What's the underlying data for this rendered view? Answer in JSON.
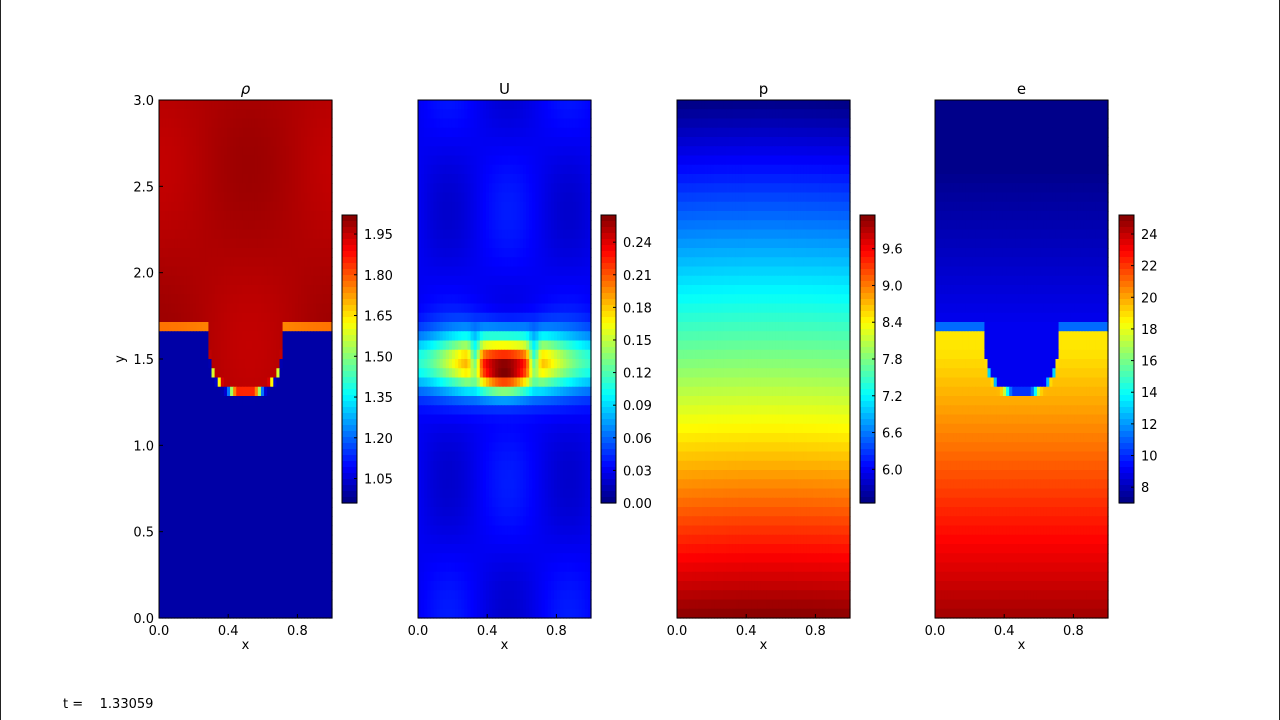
{
  "colors": {
    "jet": [
      "#00007f",
      "#0000ff",
      "#007fff",
      "#00ffff",
      "#7fff7f",
      "#ffff00",
      "#ff7f00",
      "#ff0000",
      "#7f0000"
    ],
    "frame_border": "#000000",
    "page_background": "#ffffff"
  },
  "time": {
    "label": "t =",
    "value": "1.33059"
  },
  "chart_data": [
    {
      "type": "heatmap",
      "title": "ρ",
      "xlabel": "x",
      "ylabel": "y",
      "xlim": [
        0,
        1
      ],
      "ylim": [
        0,
        3
      ],
      "x_ticks": [
        "0.0",
        "0.4",
        "0.8"
      ],
      "y_ticks": [
        "0.0",
        "0.5",
        "1.0",
        "1.5",
        "2.0",
        "2.5",
        "3.0"
      ],
      "colorbar": {
        "range": [
          0.96,
          2.02
        ],
        "ticks": [
          "1.05",
          "1.20",
          "1.35",
          "1.50",
          "1.65",
          "1.80",
          "1.95"
        ]
      },
      "field": "two-fluid interface: dense fluid (≈1.98) above light fluid (≈1.0); interface at y≈1.68 near walls dipping to y≈1.30 at x=0.5"
    },
    {
      "type": "heatmap",
      "title": "U",
      "xlabel": "x",
      "xlim": [
        0,
        1
      ],
      "ylim": [
        0,
        3
      ],
      "x_ticks": [
        "0.0",
        "0.4",
        "0.8"
      ],
      "colorbar": {
        "range": [
          0.0,
          0.265
        ],
        "ticks": [
          "0.00",
          "0.03",
          "0.06",
          "0.09",
          "0.12",
          "0.15",
          "0.18",
          "0.21",
          "0.24"
        ]
      },
      "field": "velocity magnitude: peak ≈0.26 near (0.5, 1.4), band of high speed around y≈1.3–1.7, low elsewhere (≈0.02–0.05)"
    },
    {
      "type": "heatmap",
      "title": "p",
      "xlabel": "x",
      "xlim": [
        0,
        1
      ],
      "ylim": [
        0,
        3
      ],
      "x_ticks": [
        "0.0",
        "0.4",
        "0.8"
      ],
      "colorbar": {
        "range": [
          5.45,
          10.15
        ],
        "ticks": [
          "6.0",
          "6.6",
          "7.2",
          "7.8",
          "8.4",
          "9.0",
          "9.6"
        ]
      },
      "field": "pressure decreasing with height: ≈10.1 at y=0 to ≈5.5 at y=3"
    },
    {
      "type": "heatmap",
      "title": "e",
      "xlabel": "x",
      "xlim": [
        0,
        1
      ],
      "ylim": [
        0,
        3
      ],
      "x_ticks": [
        "0.0",
        "0.4",
        "0.8"
      ],
      "colorbar": {
        "range": [
          7.0,
          25.2
        ],
        "ticks": [
          "8",
          "10",
          "12",
          "14",
          "16",
          "18",
          "20",
          "22",
          "24"
        ]
      },
      "field": "internal energy: ≈7–9 above interface, ≈19–25 below (higher toward bottom)"
    }
  ]
}
